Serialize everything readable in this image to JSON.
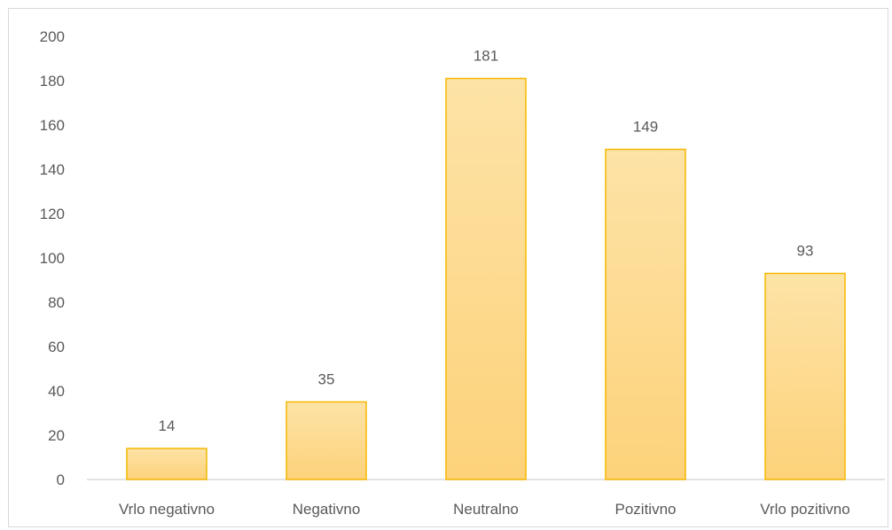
{
  "chart_data": {
    "type": "bar",
    "title": "",
    "xlabel": "",
    "ylabel": "",
    "categories": [
      "Vrlo negativno",
      "Negativno",
      "Neutralno",
      "Pozitivno",
      "Vrlo pozitivno"
    ],
    "values": [
      14,
      35,
      181,
      149,
      93
    ],
    "ylim": [
      0,
      200
    ],
    "yticks": [
      0,
      20,
      40,
      60,
      80,
      100,
      120,
      140,
      160,
      180,
      200
    ],
    "grid": false,
    "legend": "none",
    "data_labels": true,
    "colors": {
      "bar_fill_top": "#fde3a7",
      "bar_fill_bottom": "#fdd27a",
      "bar_stroke": "#f5b800",
      "axis": "#d9d9d9",
      "text": "#595959"
    }
  }
}
